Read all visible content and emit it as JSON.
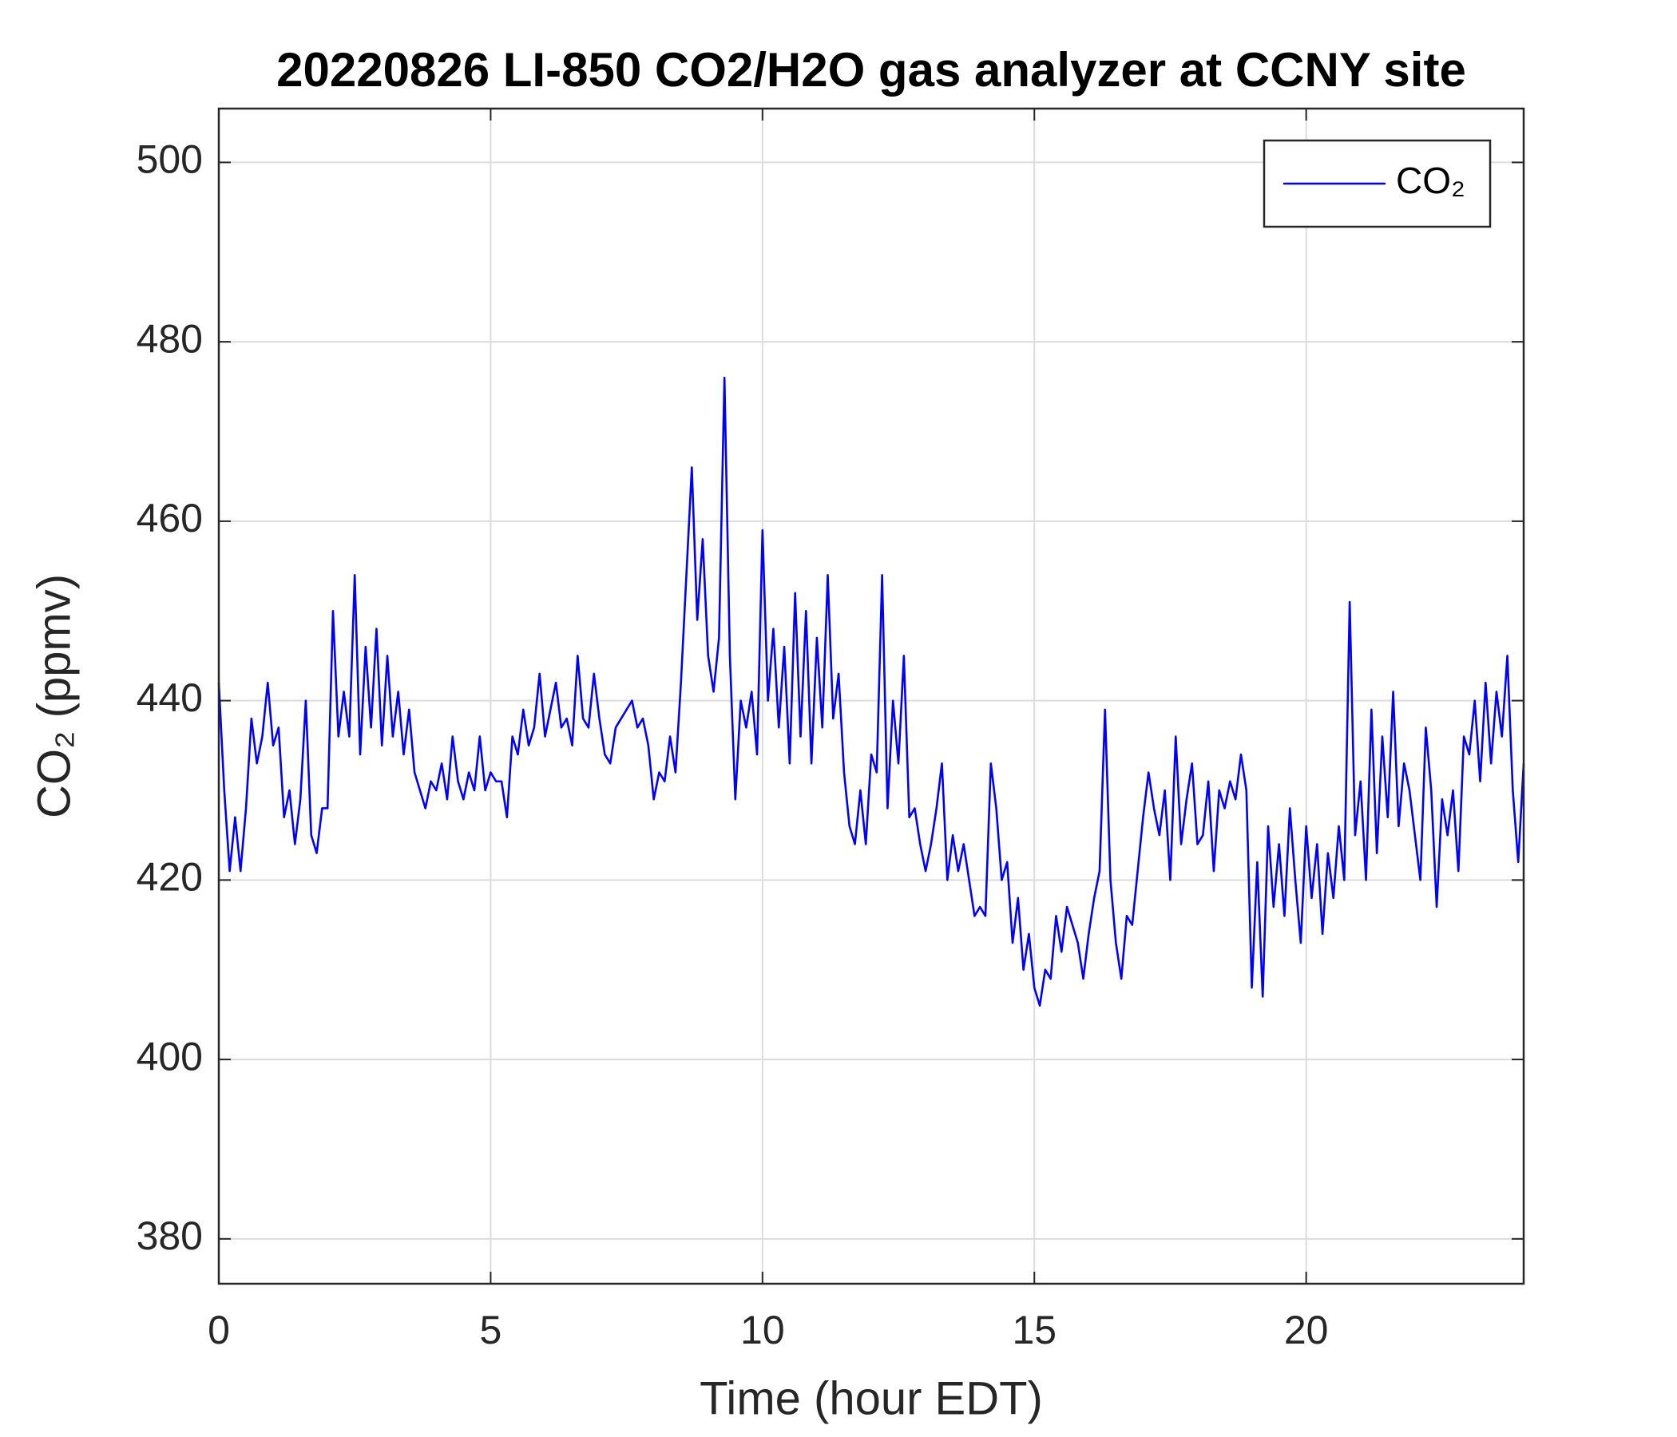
{
  "chart_data": {
    "type": "line",
    "title": "20220826 LI-850 CO2/H2O gas analyzer at CCNY site",
    "x_label": "Time (hour EDT)",
    "y_label": "CO₂ (ppmv)",
    "xlim": [
      0,
      24
    ],
    "xticks": [
      0,
      5,
      10,
      15,
      20
    ],
    "ylim": [
      375,
      506
    ],
    "yticks": [
      380,
      400,
      420,
      440,
      460,
      480,
      500
    ],
    "grid": true,
    "legend": "top-right",
    "x": [
      0,
      0.1,
      0.2,
      0.3,
      0.4,
      0.5,
      0.6,
      0.7,
      0.8,
      0.9,
      1,
      1.1,
      1.2,
      1.3,
      1.4,
      1.5,
      1.6,
      1.7,
      1.8,
      1.9,
      2,
      2.1,
      2.2,
      2.3,
      2.4,
      2.5,
      2.6,
      2.7,
      2.8,
      2.9,
      3,
      3.1,
      3.2,
      3.3,
      3.4,
      3.5,
      3.6,
      3.7,
      3.8,
      3.9,
      4,
      4.1,
      4.2,
      4.3,
      4.4,
      4.5,
      4.6,
      4.7,
      4.8,
      4.9,
      5,
      5.1,
      5.2,
      5.3,
      5.4,
      5.5,
      5.6,
      5.7,
      5.8,
      5.9,
      6,
      6.1,
      6.2,
      6.3,
      6.4,
      6.5,
      6.6,
      6.7,
      6.8,
      6.9,
      7,
      7.1,
      7.2,
      7.3,
      7.4,
      7.5,
      7.6,
      7.7,
      7.8,
      7.9,
      8,
      8.1,
      8.2,
      8.3,
      8.4,
      8.5,
      8.6,
      8.7,
      8.8,
      8.9,
      9,
      9.1,
      9.2,
      9.3,
      9.4,
      9.5,
      9.6,
      9.7,
      9.8,
      9.9,
      10,
      10.1,
      10.2,
      10.3,
      10.4,
      10.5,
      10.6,
      10.7,
      10.8,
      10.9,
      11,
      11.1,
      11.2,
      11.3,
      11.4,
      11.5,
      11.6,
      11.7,
      11.8,
      11.9,
      12,
      12.1,
      12.2,
      12.3,
      12.4,
      12.5,
      12.6,
      12.7,
      12.8,
      12.9,
      13,
      13.1,
      13.2,
      13.3,
      13.4,
      13.5,
      13.6,
      13.7,
      13.8,
      13.9,
      14,
      14.1,
      14.2,
      14.3,
      14.4,
      14.5,
      14.6,
      14.7,
      14.8,
      14.9,
      15,
      15.1,
      15.2,
      15.3,
      15.4,
      15.5,
      15.6,
      15.7,
      15.8,
      15.9,
      16,
      16.1,
      16.2,
      16.3,
      16.4,
      16.5,
      16.6,
      16.7,
      16.8,
      16.9,
      17,
      17.1,
      17.2,
      17.3,
      17.4,
      17.5,
      17.6,
      17.7,
      17.8,
      17.9,
      18,
      18.1,
      18.2,
      18.3,
      18.4,
      18.5,
      18.6,
      18.7,
      18.8,
      18.9,
      19,
      19.1,
      19.2,
      19.3,
      19.4,
      19.5,
      19.6,
      19.7,
      19.8,
      19.9,
      20,
      20.1,
      20.2,
      20.3,
      20.4,
      20.5,
      20.6,
      20.7,
      20.8,
      20.9,
      21,
      21.1,
      21.2,
      21.3,
      21.4,
      21.5,
      21.6,
      21.7,
      21.8,
      21.9,
      22,
      22.1,
      22.2,
      22.3,
      22.4,
      22.5,
      22.6,
      22.7,
      22.8,
      22.9,
      23,
      23.1,
      23.2,
      23.3,
      23.4,
      23.5,
      23.6,
      23.7,
      23.8,
      23.9,
      24
    ],
    "series": [
      {
        "name": "CO₂",
        "color": "#0000ff",
        "values": [
          442,
          430,
          421,
          427,
          421,
          428,
          438,
          433,
          436,
          442,
          435,
          437,
          427,
          430,
          424,
          429,
          440,
          425,
          423,
          428,
          428,
          450,
          436,
          441,
          436,
          454,
          434,
          446,
          437,
          448,
          435,
          445,
          436,
          441,
          434,
          439,
          432,
          430,
          428,
          431,
          430,
          433,
          429,
          436,
          431,
          429,
          432,
          430,
          436,
          430,
          432,
          431,
          431,
          427,
          436,
          434,
          439,
          435,
          437,
          443,
          436,
          439,
          442,
          437,
          438,
          435,
          445,
          438,
          437,
          443,
          438,
          434,
          433,
          437,
          438,
          439,
          440,
          437,
          438,
          435,
          429,
          432,
          431,
          436,
          432,
          442,
          454,
          466,
          449,
          458,
          445,
          441,
          447,
          476,
          445,
          429,
          440,
          437,
          441,
          434,
          459,
          440,
          448,
          437,
          446,
          433,
          452,
          436,
          450,
          433,
          447,
          437,
          454,
          438,
          443,
          432,
          426,
          424,
          430,
          424,
          434,
          432,
          454,
          428,
          440,
          433,
          445,
          427,
          428,
          424,
          421,
          424,
          428,
          433,
          420,
          425,
          421,
          424,
          420,
          416,
          417,
          416,
          433,
          428,
          420,
          422,
          413,
          418,
          410,
          414,
          408,
          406,
          410,
          409,
          416,
          412,
          417,
          415,
          413,
          409,
          414,
          418,
          421,
          439,
          420,
          413,
          409,
          416,
          415,
          421,
          427,
          432,
          428,
          425,
          430,
          420,
          436,
          424,
          429,
          433,
          424,
          425,
          431,
          421,
          430,
          428,
          431,
          429,
          434,
          430,
          408,
          422,
          407,
          426,
          417,
          424,
          416,
          428,
          420,
          413,
          426,
          418,
          424,
          414,
          423,
          418,
          426,
          420,
          451,
          425,
          431,
          420,
          439,
          423,
          436,
          427,
          441,
          426,
          433,
          430,
          425,
          420,
          437,
          430,
          417,
          429,
          425,
          430,
          421,
          436,
          434,
          440,
          431,
          442,
          433,
          441,
          436,
          445,
          430,
          422,
          433
        ]
      }
    ]
  }
}
